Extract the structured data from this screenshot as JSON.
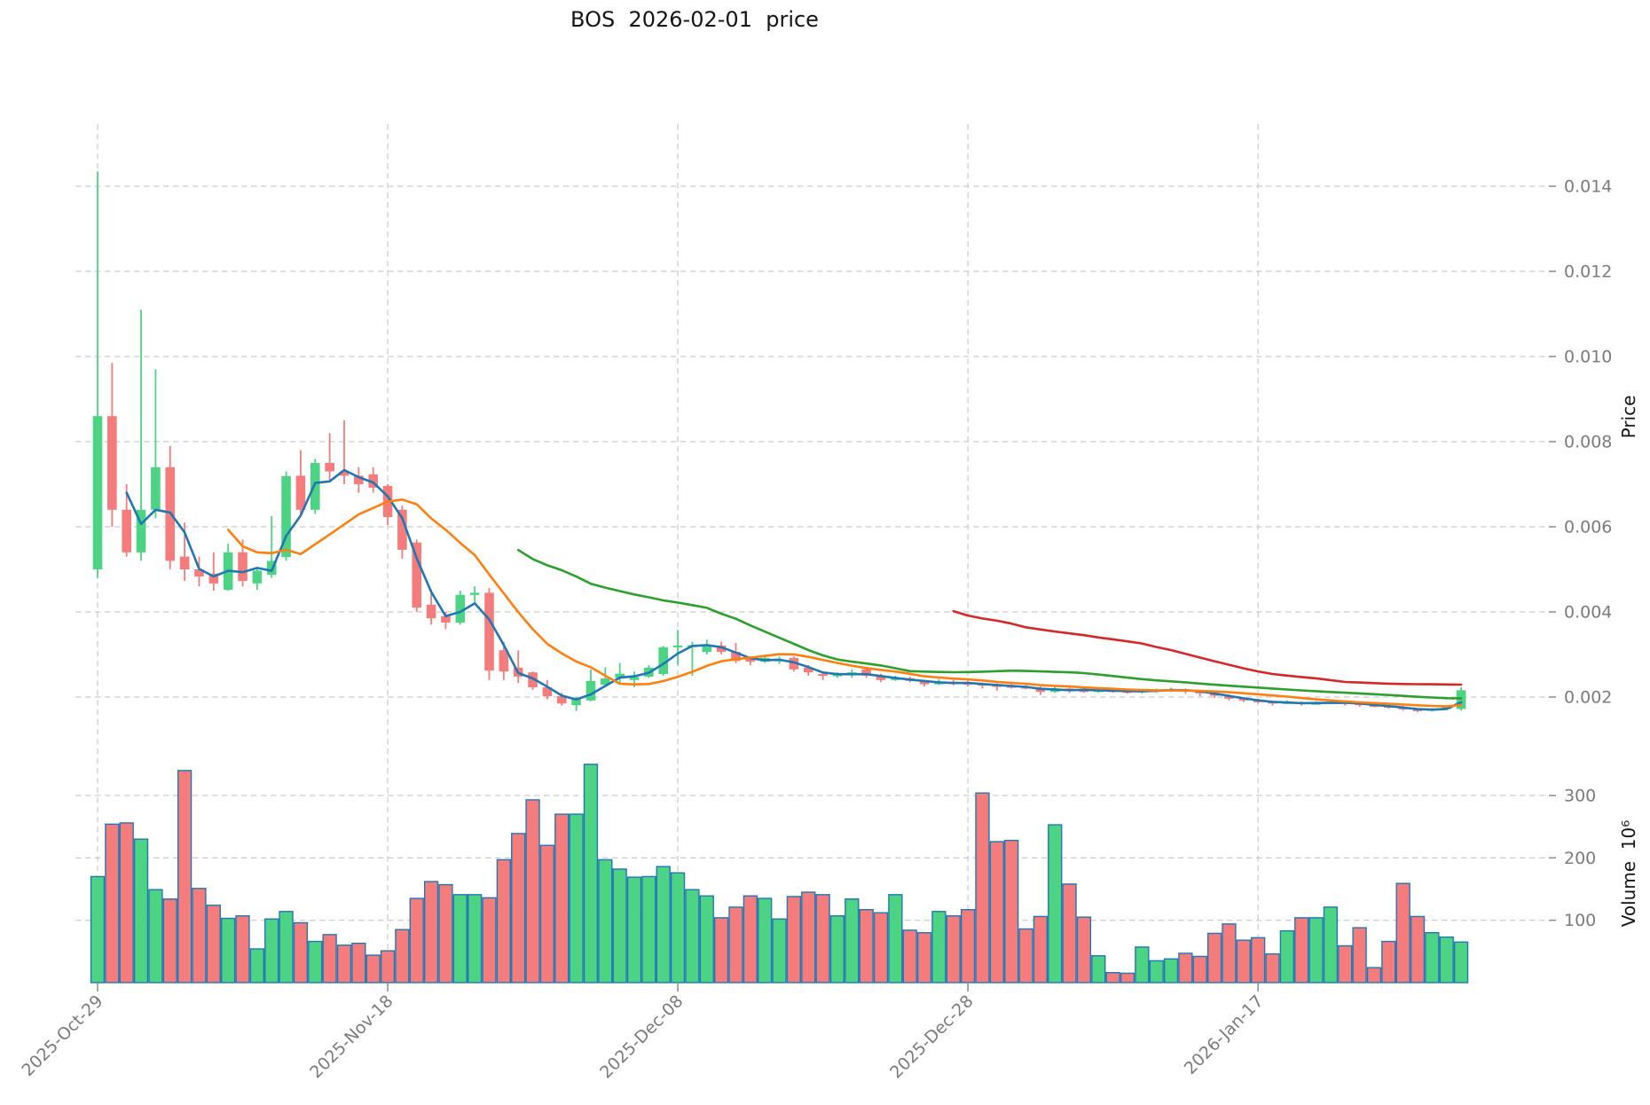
{
  "title": "BOS  2026-02-01  price",
  "price_axis": {
    "label": "Price",
    "ticks": [
      {
        "value": 0.014,
        "label": "0.014"
      },
      {
        "value": 0.012,
        "label": "0.012"
      },
      {
        "value": 0.01,
        "label": "0.010"
      },
      {
        "value": 0.008,
        "label": "0.008"
      },
      {
        "value": 0.006,
        "label": "0.006"
      },
      {
        "value": 0.004,
        "label": "0.004"
      },
      {
        "value": 0.002,
        "label": "0.002"
      }
    ]
  },
  "volume_axis": {
    "label": "Volume  10⁶",
    "ticks": [
      {
        "value": 300,
        "label": "300"
      },
      {
        "value": 200,
        "label": "200"
      },
      {
        "value": 100,
        "label": "100"
      }
    ]
  },
  "x_axis": {
    "ticks": [
      {
        "index": 0,
        "label": "2025-Oct-29"
      },
      {
        "index": 20,
        "label": "2025-Nov-18"
      },
      {
        "index": 40,
        "label": "2025-Dec-08"
      },
      {
        "index": 60,
        "label": "2025-Dec-28"
      },
      {
        "index": 80,
        "label": "2026-Jan-17"
      }
    ]
  },
  "chart_data": {
    "type": "candlestick",
    "title": "BOS  2026-02-01  price",
    "ylabel": "Price",
    "ylabel2": "Volume  10⁶",
    "price_ylim": [
      0.00056,
      0.01546
    ],
    "volume_ylim": [
      0,
      353
    ],
    "grid": true,
    "price_scale": 0.001,
    "volume_unit": 1000000,
    "open": [
      5.0,
      8.6,
      6.4,
      5.4,
      6.4,
      7.4,
      5.3,
      5.0,
      4.9,
      4.52,
      5.4,
      4.67,
      4.87,
      5.29,
      7.2,
      6.4,
      7.5,
      7.3,
      7.2,
      7.23,
      6.96,
      6.4,
      5.63,
      4.17,
      3.9,
      3.75,
      4.4,
      4.45,
      3.1,
      2.69,
      2.58,
      2.23,
      2.02,
      1.81,
      1.92,
      2.29,
      2.45,
      2.4,
      2.48,
      2.54,
      3.18,
      3.18,
      3.06,
      3.21,
      3.06,
      2.9,
      2.83,
      2.84,
      2.92,
      2.69,
      2.54,
      2.5,
      2.52,
      2.65,
      2.49,
      2.4,
      2.44,
      2.37,
      2.3,
      2.36,
      2.33,
      2.31,
      2.28,
      2.26,
      2.24,
      2.22,
      2.12,
      2.2,
      2.16,
      2.13,
      2.16,
      2.14,
      2.12,
      2.14,
      2.15,
      2.18,
      2.13,
      2.09,
      2.03,
      1.96,
      1.92,
      1.89,
      1.85,
      1.88,
      1.84,
      1.86,
      1.89,
      1.85,
      1.81,
      1.79,
      1.76,
      1.71,
      1.68,
      1.72,
      1.72
    ],
    "high": [
      14.35,
      9.85,
      7.0,
      11.1,
      9.7,
      7.9,
      6.1,
      5.3,
      5.4,
      5.6,
      5.7,
      5.0,
      6.25,
      7.3,
      7.8,
      7.6,
      8.2,
      8.5,
      7.4,
      7.4,
      7.0,
      6.5,
      5.7,
      4.52,
      4.0,
      4.5,
      4.6,
      4.56,
      3.3,
      3.1,
      2.6,
      2.4,
      2.1,
      2.0,
      2.65,
      2.7,
      2.8,
      2.6,
      2.75,
      3.2,
      3.58,
      3.3,
      3.35,
      3.3,
      3.27,
      2.95,
      3.0,
      2.95,
      2.95,
      2.75,
      2.6,
      2.58,
      2.65,
      2.7,
      2.55,
      2.5,
      2.48,
      2.4,
      2.42,
      2.4,
      2.38,
      2.34,
      2.32,
      2.3,
      2.28,
      2.25,
      2.25,
      2.22,
      2.2,
      2.2,
      2.18,
      2.16,
      2.18,
      2.2,
      2.22,
      2.2,
      2.16,
      2.12,
      2.06,
      2.0,
      1.96,
      1.92,
      1.92,
      1.9,
      1.9,
      1.93,
      1.9,
      1.88,
      1.84,
      1.82,
      1.79,
      1.74,
      1.74,
      1.78,
      2.23
    ],
    "low": [
      4.8,
      6.0,
      5.3,
      5.2,
      6.2,
      5.0,
      4.73,
      4.6,
      4.5,
      4.5,
      4.6,
      4.52,
      4.8,
      5.2,
      6.3,
      6.3,
      7.1,
      7.0,
      6.8,
      6.8,
      6.04,
      5.25,
      4.0,
      3.7,
      3.6,
      3.7,
      4.2,
      2.4,
      2.4,
      2.33,
      2.17,
      1.95,
      1.8,
      1.67,
      1.9,
      2.23,
      2.3,
      2.23,
      2.45,
      2.5,
      2.75,
      2.5,
      3.0,
      3.0,
      2.8,
      2.75,
      2.8,
      2.78,
      2.6,
      2.5,
      2.4,
      2.45,
      2.45,
      2.45,
      2.35,
      2.38,
      2.35,
      2.25,
      2.28,
      2.28,
      2.25,
      2.2,
      2.15,
      2.2,
      2.18,
      2.05,
      2.1,
      2.1,
      2.1,
      2.1,
      2.1,
      2.08,
      2.08,
      2.1,
      2.12,
      2.08,
      2.02,
      1.98,
      1.92,
      1.88,
      1.85,
      1.8,
      1.83,
      1.8,
      1.82,
      1.84,
      1.8,
      1.77,
      1.76,
      1.73,
      1.68,
      1.64,
      1.66,
      1.7,
      1.68
    ],
    "close": [
      8.6,
      6.4,
      5.4,
      6.4,
      7.4,
      5.2,
      5.0,
      4.83,
      4.67,
      5.4,
      4.73,
      4.97,
      5.2,
      7.19,
      6.4,
      7.5,
      7.3,
      7.2,
      7.0,
      6.92,
      6.23,
      5.46,
      4.1,
      3.85,
      3.75,
      4.4,
      4.45,
      2.62,
      2.6,
      2.48,
      2.23,
      2.02,
      1.85,
      1.96,
      2.38,
      2.44,
      2.55,
      2.47,
      2.69,
      3.17,
      3.21,
      3.22,
      3.23,
      3.06,
      2.85,
      2.83,
      2.92,
      2.88,
      2.65,
      2.58,
      2.5,
      2.53,
      2.58,
      2.5,
      2.4,
      2.45,
      2.38,
      2.3,
      2.36,
      2.33,
      2.31,
      2.28,
      2.26,
      2.24,
      2.22,
      2.12,
      2.2,
      2.16,
      2.15,
      2.16,
      2.14,
      2.12,
      2.15,
      2.17,
      2.18,
      2.13,
      2.09,
      2.03,
      1.96,
      1.92,
      1.89,
      1.85,
      1.88,
      1.84,
      1.86,
      1.89,
      1.85,
      1.81,
      1.79,
      1.76,
      1.71,
      1.68,
      1.72,
      1.76,
      2.16
    ],
    "volume": [
      170,
      254,
      256,
      230,
      149,
      134,
      340,
      151,
      124,
      103,
      107,
      54,
      102,
      114,
      96,
      66,
      77,
      60,
      63,
      44,
      51,
      85,
      135,
      162,
      157,
      141,
      141,
      136,
      197,
      239,
      293,
      220,
      270,
      270,
      350,
      197,
      182,
      169,
      170,
      186,
      176,
      149,
      139,
      104,
      121,
      139,
      135,
      102,
      138,
      145,
      141,
      107,
      134,
      117,
      112,
      141,
      84,
      80,
      114,
      107,
      117,
      304,
      226,
      228,
      86,
      106,
      253,
      158,
      105,
      43,
      16,
      15,
      57,
      35,
      38,
      47,
      42,
      79,
      94,
      68,
      72,
      46,
      83,
      104,
      104,
      121,
      59,
      88,
      24,
      66,
      159,
      106,
      80,
      73,
      65
    ],
    "moving_averages": [
      {
        "window": 3,
        "color": "#1f77b4"
      },
      {
        "window": 10,
        "color": "#ff7f0e"
      },
      {
        "window": 30,
        "color": "#2ca02c"
      },
      {
        "window": 60,
        "color": "#d62728"
      }
    ],
    "colors": {
      "up": "#4cd484",
      "down": "#f47c7c",
      "volume_edge": "#2077b4",
      "grid": "#cccccc",
      "tick_mark": "#8a8a8a",
      "tick_text": "#7b7b7b",
      "title_text": "#151515"
    },
    "legend_position": "none"
  }
}
